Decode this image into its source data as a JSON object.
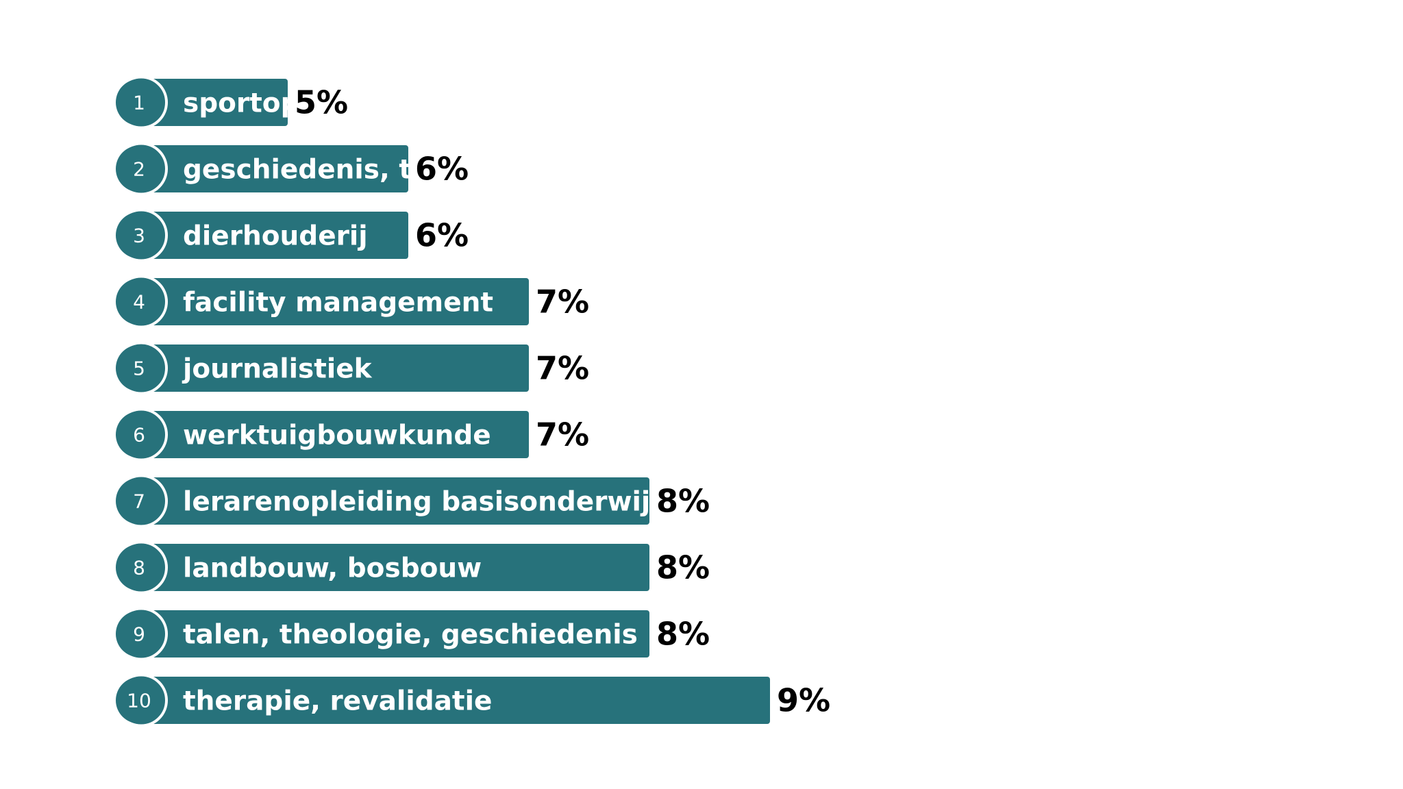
{
  "chart_data": {
    "type": "bar",
    "orientation": "horizontal",
    "unit": "%",
    "ranks": [
      "1",
      "2",
      "3",
      "4",
      "5",
      "6",
      "7",
      "8",
      "9",
      "10"
    ],
    "categories": [
      "sportopleiding",
      "geschiedenis, taalwetenschappen",
      "dierhouderij",
      "facility management",
      "journalistiek",
      "werktuigbouwkunde",
      "lerarenopleiding basisonderwijs",
      "landbouw, bosbouw",
      "talen, theologie, geschiedenis",
      "therapie, revalidatie"
    ],
    "values": [
      5,
      6,
      6,
      7,
      7,
      7,
      8,
      8,
      8,
      9
    ],
    "value_labels": [
      "5%",
      "6%",
      "6%",
      "7%",
      "7%",
      "7%",
      "8%",
      "8%",
      "8%",
      "9%"
    ],
    "xlim": [
      0,
      9
    ],
    "grid": false,
    "legend": "none",
    "colors": {
      "bar": "#27727b",
      "badge": "#27727b",
      "badge_ring": "#ffffff",
      "bar_text": "#ffffff",
      "value_text": "#000000"
    }
  }
}
